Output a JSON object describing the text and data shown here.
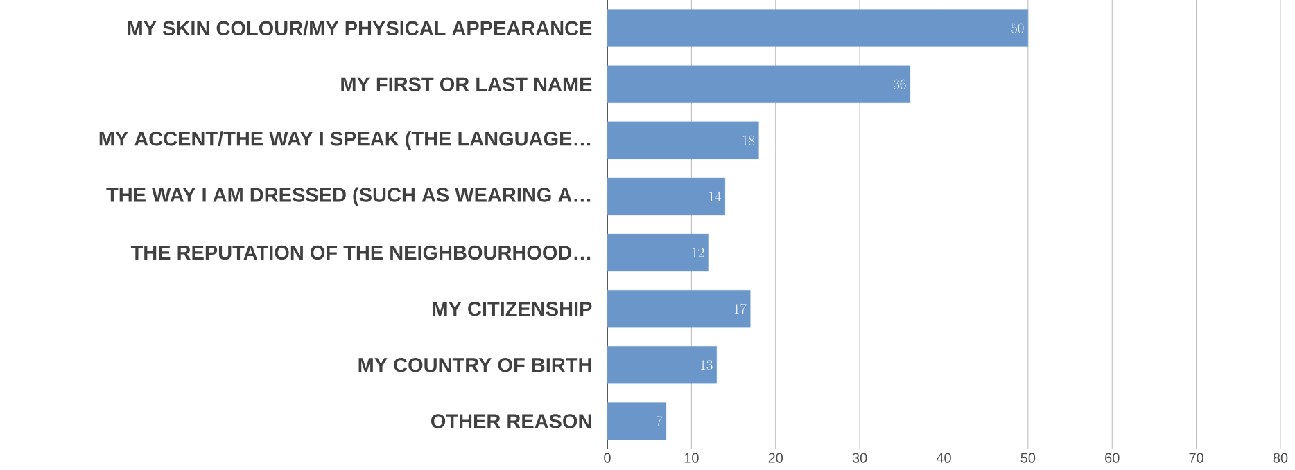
{
  "chart_data": {
    "type": "bar",
    "orientation": "horizontal",
    "categories": [
      "MY SKIN COLOUR/MY PHYSICAL APPEARANCE",
      "MY FIRST OR LAST NAME",
      "MY ACCENT/THE WAY I SPEAK (THE LANGUAGE…",
      "THE WAY I AM DRESSED (SUCH AS WEARING A…",
      "THE REPUTATION OF THE NEIGHBOURHOOD…",
      "MY CITIZENSHIP",
      "MY COUNTRY OF BIRTH",
      "OTHER REASON"
    ],
    "values": [
      50,
      36,
      18,
      14,
      12,
      17,
      13,
      7
    ],
    "color": "#6a96c9",
    "xlim": [
      0,
      80
    ],
    "xticks": [
      0,
      10,
      20,
      30,
      40,
      50,
      60,
      70,
      80
    ],
    "grid": "x",
    "data_labels": true
  }
}
